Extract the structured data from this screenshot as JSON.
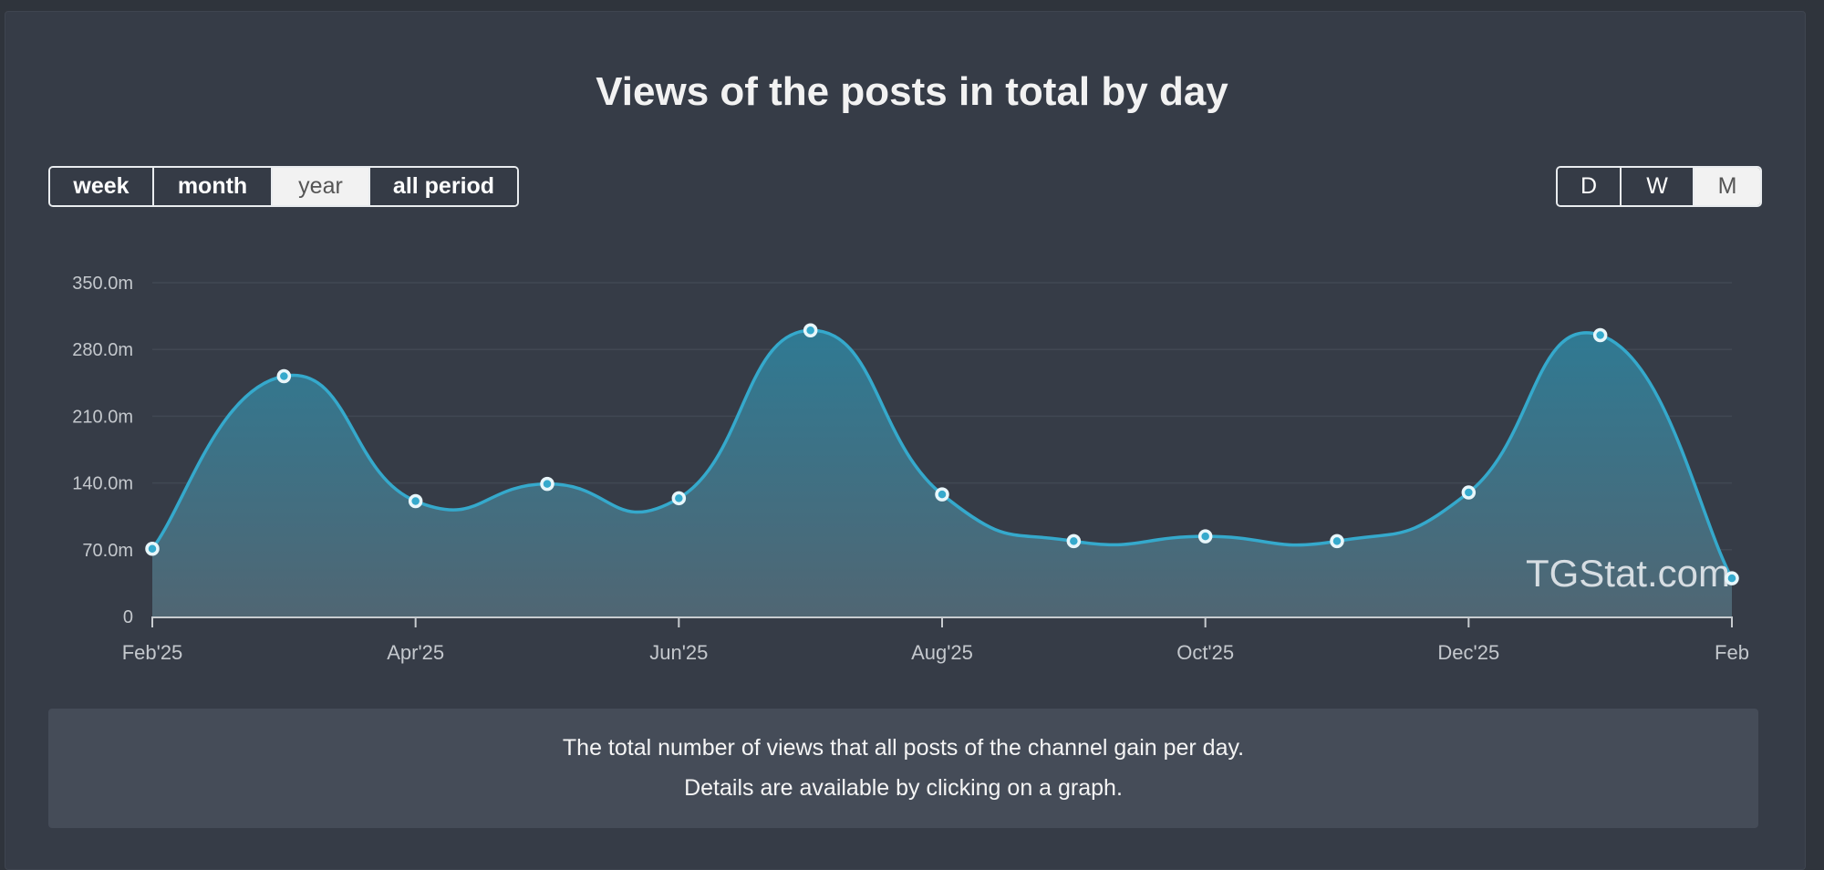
{
  "title": "Views of the posts in total by day",
  "period_buttons": [
    {
      "label": "week",
      "active": false
    },
    {
      "label": "month",
      "active": false
    },
    {
      "label": "year",
      "active": true
    },
    {
      "label": "all period",
      "active": false
    }
  ],
  "granularity_buttons": [
    {
      "label": "D",
      "active": false
    },
    {
      "label": "W",
      "active": false
    },
    {
      "label": "M",
      "active": true
    }
  ],
  "watermark": "TGStat.com",
  "footer": {
    "line1": "The total number of views that all posts of the channel gain per day.",
    "line2": "Details are available by clicking on a graph."
  },
  "colors": {
    "line": "#35a9cc",
    "fill": "#3f7c90",
    "marker": "#e8f6fa"
  },
  "chart_data": {
    "type": "area",
    "title": "Views of the posts in total by day",
    "x": [
      "2025-02",
      "2025-03",
      "2025-04",
      "2025-05",
      "2025-06",
      "2025-07",
      "2025-08",
      "2025-09",
      "2025-10",
      "2025-11",
      "2025-12",
      "2026-01",
      "2026-02"
    ],
    "values": [
      71,
      252,
      121,
      139,
      124,
      300,
      128,
      79,
      84,
      79,
      130,
      295,
      40
    ],
    "unit": "m",
    "x_tick_labels": [
      "Feb'25",
      "Apr'25",
      "Jun'25",
      "Aug'25",
      "Oct'25",
      "Dec'25",
      "Feb"
    ],
    "x_tick_index": [
      0,
      2,
      4,
      6,
      8,
      10,
      12
    ],
    "y_ticks": [
      0,
      70,
      140,
      210,
      280,
      350
    ],
    "y_tick_labels": [
      "0",
      "70.0m",
      "140.0m",
      "210.0m",
      "280.0m",
      "350.0m"
    ],
    "ylim": [
      0,
      350
    ],
    "grid": true,
    "xlabel": "",
    "ylabel": ""
  }
}
